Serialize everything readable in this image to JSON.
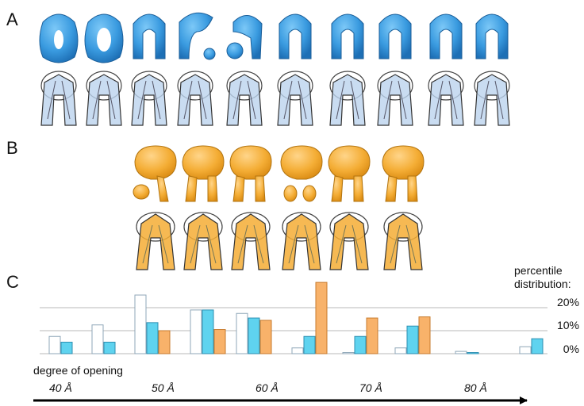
{
  "panels": {
    "a": "A",
    "b": "B",
    "c": "C"
  },
  "colors": {
    "blue_shape": "#3a9be0",
    "orange_shape": "#f4ad35",
    "bar_white": "#ffffff",
    "bar_blue": "#5fd3ef",
    "bar_orange": "#f8b26a",
    "arrow": "#000000"
  },
  "icons": {
    "row_a_top": "blue-density-map-icon",
    "row_a_bottom": "blue-fitted-structure-icon",
    "row_b_top": "orange-density-map-icon",
    "row_b_bottom": "orange-fitted-structure-icon"
  },
  "legend": {
    "line1": "percentile",
    "line2": "distribution:"
  },
  "axis_label": "degree of opening",
  "chart_data": {
    "type": "bar",
    "xlabel": "degree of opening",
    "x_ticks": [
      "40 Å",
      "50 Å",
      "60 Å",
      "70 Å",
      "80 Å"
    ],
    "ytick_labels": [
      "20%",
      "10%",
      "0%"
    ],
    "yticks": [
      20,
      10,
      0
    ],
    "ylim": [
      0,
      30
    ],
    "groups": [
      {
        "white": 7.5,
        "blue": 5
      },
      {
        "white": 12.5,
        "blue": 5
      },
      {
        "white": 25.5,
        "blue": 13.5,
        "orange": 10
      },
      {
        "white": 19,
        "blue": 19,
        "orange": 10.5
      },
      {
        "white": 17.5,
        "blue": 15.5,
        "orange": 14.5
      },
      {
        "white": 2.5,
        "blue": 7.5,
        "orange": 31
      },
      {
        "white": 0.5,
        "blue": 7.5,
        "orange": 15.5
      },
      {
        "white": 2.5,
        "blue": 12,
        "orange": 16
      },
      {
        "white": 1,
        "blue": 0.5
      },
      {
        "white": 3,
        "blue": 6.5
      }
    ]
  }
}
